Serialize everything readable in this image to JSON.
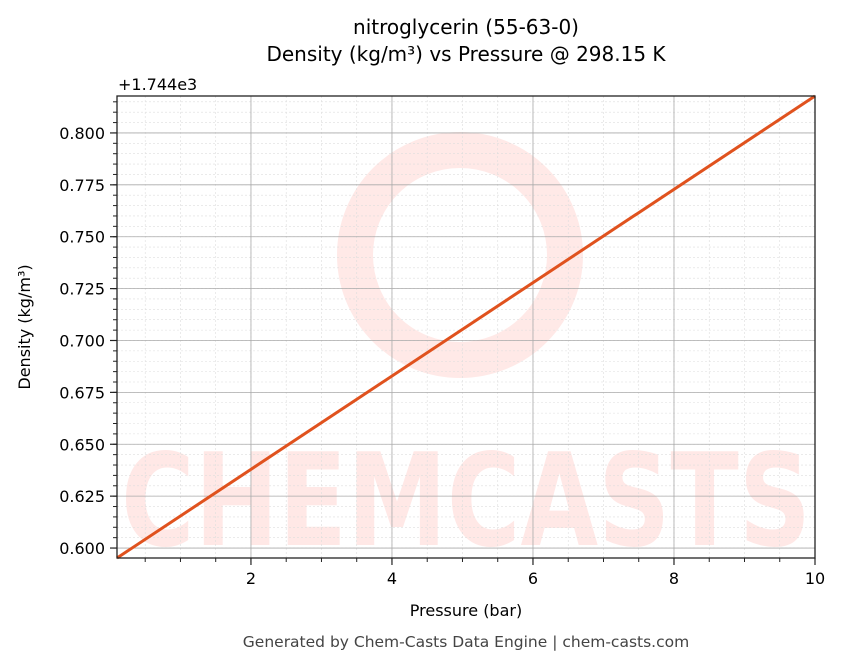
{
  "chart_data": {
    "type": "line",
    "title": "nitroglycerin (55-63-0)",
    "subtitle": "Density (kg/m³) vs Pressure @ 298.15 K",
    "xlabel": "Pressure (bar)",
    "ylabel": "Density (kg/m³)",
    "y_offset_label": "+1.744e3",
    "xlim": [
      0.1,
      10
    ],
    "ylim": [
      0.5952,
      0.8178
    ],
    "x_ticks": [
      2,
      4,
      6,
      8,
      10
    ],
    "x_tick_labels": [
      "2",
      "4",
      "6",
      "8",
      "10"
    ],
    "y_ticks": [
      0.6,
      0.625,
      0.65,
      0.675,
      0.7,
      0.725,
      0.75,
      0.775,
      0.8
    ],
    "y_tick_labels": [
      "0.600",
      "0.625",
      "0.650",
      "0.675",
      "0.700",
      "0.725",
      "0.750",
      "0.775",
      "0.800"
    ],
    "grid": true,
    "series": [
      {
        "x": [
          0.1,
          10
        ],
        "y": [
          0.5952,
          0.8178
        ],
        "color": "#e0521e"
      }
    ],
    "watermark": "CHEMCASTS",
    "footer": "Generated by Chem-Casts Data Engine | chem-casts.com"
  }
}
